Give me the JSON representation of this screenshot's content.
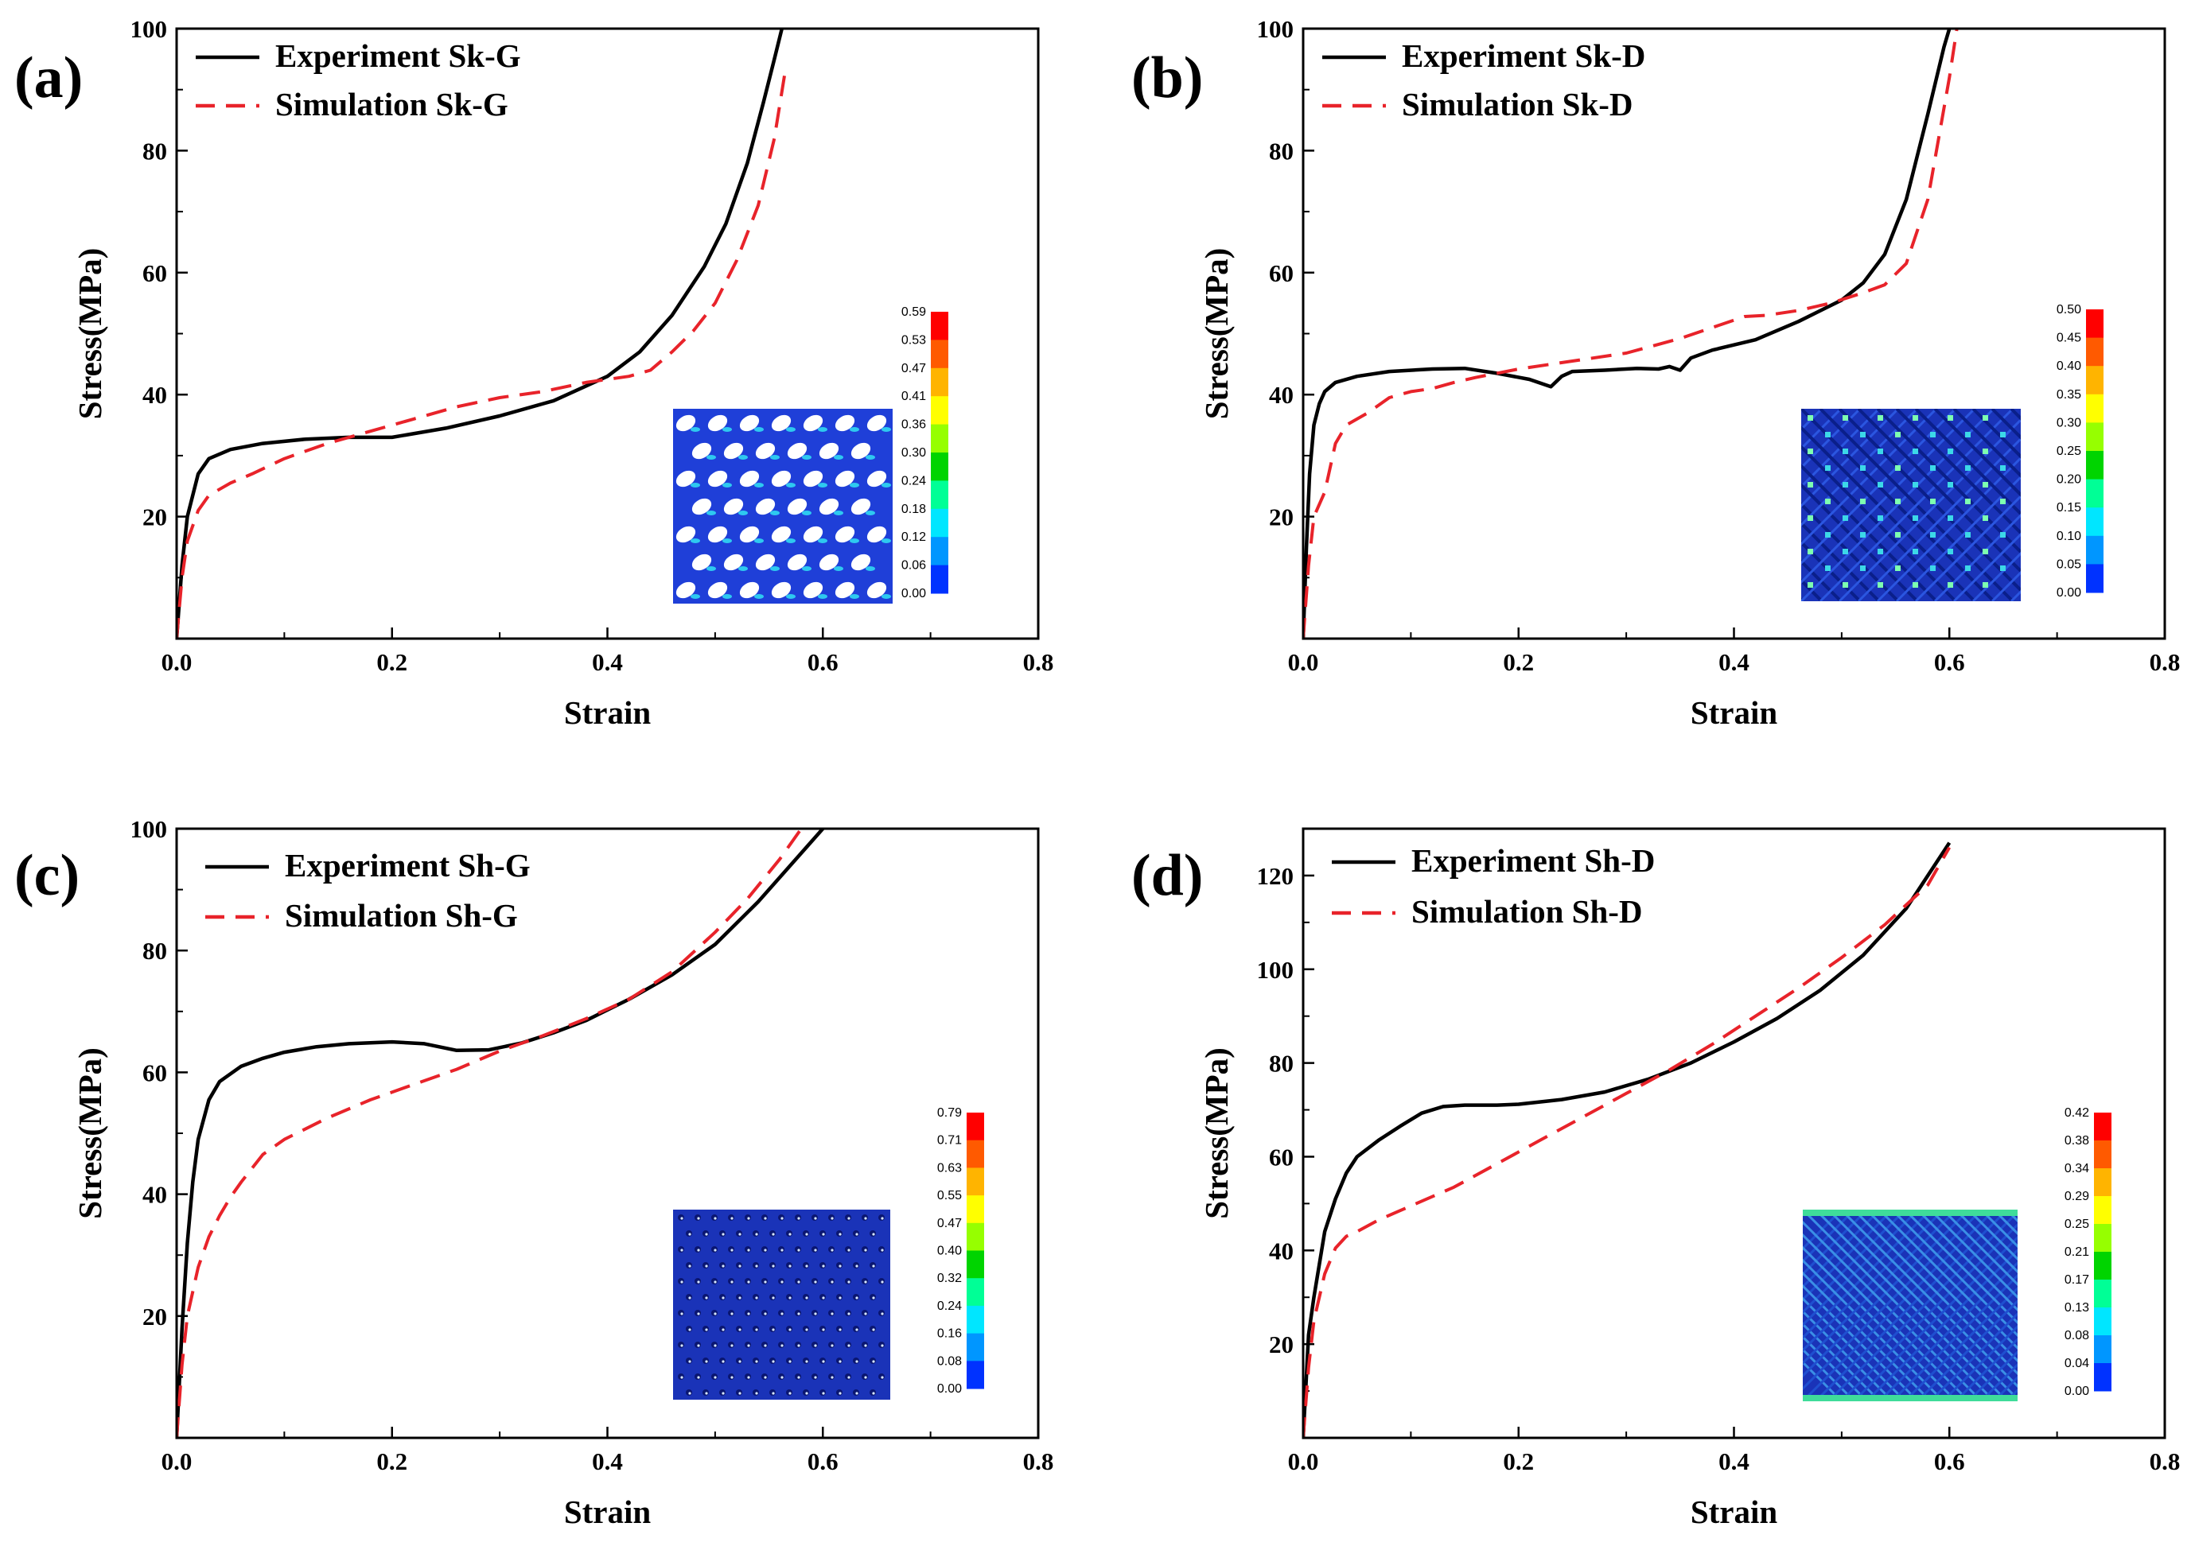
{
  "figure": {
    "colors": {
      "experiment": "#000000",
      "simulation": "#e8232a"
    }
  },
  "chart_data": [
    {
      "type": "line",
      "panel_label": "(a)",
      "xlabel": "Strain",
      "ylabel": "Stress(MPa)",
      "xlim": [
        0,
        0.8
      ],
      "ylim": [
        0,
        100
      ],
      "xticks": [
        "0.0",
        "0.2",
        "0.4",
        "0.6",
        "0.8"
      ],
      "yticks": [
        "20",
        "40",
        "60",
        "80",
        "100"
      ],
      "yticks_values": [
        20,
        40,
        60,
        80,
        100
      ],
      "legend_position": "top-left",
      "series": [
        {
          "name": "Experiment Sk-G",
          "style": "solid",
          "color": "#000000",
          "x": [
            0,
            0.005,
            0.01,
            0.02,
            0.03,
            0.05,
            0.08,
            0.12,
            0.16,
            0.2,
            0.25,
            0.3,
            0.35,
            0.4,
            0.43,
            0.46,
            0.49,
            0.51,
            0.53,
            0.545,
            0.555,
            0.562
          ],
          "y": [
            0,
            12,
            20,
            27,
            29.5,
            31,
            32,
            32.7,
            33,
            33,
            34.5,
            36.5,
            39,
            43,
            47,
            53,
            61,
            68,
            78,
            88,
            95,
            100
          ]
        },
        {
          "name": "Simulation Sk-G",
          "style": "dashed",
          "color": "#e8232a",
          "x": [
            0,
            0.005,
            0.01,
            0.02,
            0.03,
            0.05,
            0.07,
            0.1,
            0.14,
            0.18,
            0.22,
            0.26,
            0.3,
            0.34,
            0.38,
            0.42,
            0.44,
            0.46,
            0.48,
            0.5,
            0.52,
            0.54,
            0.555,
            0.565
          ],
          "y": [
            0,
            10,
            16,
            21,
            23.5,
            25.5,
            27,
            29.5,
            32,
            34,
            36,
            38,
            39.5,
            40.5,
            42,
            43,
            44,
            47,
            50.5,
            55,
            62,
            71,
            82,
            93
          ]
        }
      ],
      "colorbar": {
        "labels": [
          "0.59",
          "0.53",
          "0.47",
          "0.41",
          "0.36",
          "0.30",
          "0.24",
          "0.18",
          "0.12",
          "0.06",
          "0.00"
        ]
      },
      "inset_pattern": "holes"
    },
    {
      "type": "line",
      "panel_label": "(b)",
      "xlabel": "Strain",
      "ylabel": "Stress(MPa)",
      "xlim": [
        0,
        0.8
      ],
      "ylim": [
        0,
        100
      ],
      "xticks": [
        "0.0",
        "0.2",
        "0.4",
        "0.6",
        "0.8"
      ],
      "yticks": [
        "20",
        "40",
        "60",
        "80",
        "100"
      ],
      "yticks_values": [
        20,
        40,
        60,
        80,
        100
      ],
      "legend_position": "top-left",
      "series": [
        {
          "name": "Experiment Sk-D",
          "style": "solid",
          "color": "#000000",
          "x": [
            0,
            0.003,
            0.006,
            0.01,
            0.015,
            0.02,
            0.03,
            0.05,
            0.08,
            0.12,
            0.15,
            0.18,
            0.21,
            0.23,
            0.24,
            0.25,
            0.28,
            0.31,
            0.33,
            0.34,
            0.35,
            0.36,
            0.38,
            0.42,
            0.46,
            0.5,
            0.52,
            0.54,
            0.56,
            0.58,
            0.595,
            0.6
          ],
          "y": [
            0,
            15,
            27,
            35,
            38.5,
            40.5,
            42,
            43,
            43.8,
            44.2,
            44.3,
            43.5,
            42.5,
            41.3,
            43,
            43.8,
            44,
            44.3,
            44.2,
            44.6,
            44,
            46,
            47.3,
            49,
            52,
            55.5,
            58.3,
            63,
            72,
            86,
            97,
            100
          ]
        },
        {
          "name": "Simulation Sk-D",
          "style": "dashed",
          "color": "#e8232a",
          "x": [
            0,
            0.005,
            0.01,
            0.02,
            0.03,
            0.04,
            0.06,
            0.08,
            0.1,
            0.12,
            0.14,
            0.16,
            0.2,
            0.25,
            0.3,
            0.35,
            0.38,
            0.41,
            0.43,
            0.46,
            0.49,
            0.52,
            0.54,
            0.56,
            0.58,
            0.6,
            0.607
          ],
          "y": [
            0,
            12,
            20,
            24,
            32,
            35,
            37,
            39.5,
            40.5,
            41,
            42,
            42.8,
            44.2,
            45.5,
            46.8,
            49.2,
            51,
            52.8,
            53,
            53.8,
            55,
            56.7,
            58,
            61.5,
            72,
            92,
            100
          ]
        }
      ],
      "colorbar": {
        "labels": [
          "0.50",
          "0.45",
          "0.40",
          "0.35",
          "0.30",
          "0.25",
          "0.20",
          "0.15",
          "0.10",
          "0.05",
          "0.00"
        ]
      },
      "inset_pattern": "diagonal"
    },
    {
      "type": "line",
      "panel_label": "(c)",
      "xlabel": "Strain",
      "ylabel": "Stress(MPa)",
      "xlim": [
        0,
        0.8
      ],
      "ylim": [
        0,
        100
      ],
      "xticks": [
        "0.0",
        "0.2",
        "0.4",
        "0.6",
        "0.8"
      ],
      "yticks": [
        "20",
        "40",
        "60",
        "80",
        "100"
      ],
      "yticks_values": [
        20,
        40,
        60,
        80,
        100
      ],
      "legend_position": "top-left",
      "series": [
        {
          "name": "Experiment Sh-G",
          "style": "solid",
          "color": "#000000",
          "x": [
            0,
            0.005,
            0.01,
            0.015,
            0.02,
            0.03,
            0.04,
            0.06,
            0.08,
            0.1,
            0.13,
            0.16,
            0.2,
            0.23,
            0.26,
            0.29,
            0.32,
            0.35,
            0.38,
            0.42,
            0.46,
            0.5,
            0.54,
            0.57,
            0.6
          ],
          "y": [
            0,
            18,
            32,
            42,
            49,
            55.5,
            58.5,
            61,
            62.3,
            63.3,
            64.2,
            64.7,
            65,
            64.7,
            63.6,
            63.7,
            64.8,
            66.5,
            68.5,
            72,
            76,
            81,
            88,
            94,
            100
          ]
        },
        {
          "name": "Simulation Sh-G",
          "style": "dashed",
          "color": "#e8232a",
          "x": [
            0,
            0.005,
            0.01,
            0.02,
            0.03,
            0.04,
            0.05,
            0.06,
            0.08,
            0.1,
            0.14,
            0.18,
            0.22,
            0.26,
            0.3,
            0.34,
            0.38,
            0.42,
            0.46,
            0.5,
            0.53,
            0.56,
            0.58
          ],
          "y": [
            0,
            12,
            20,
            28,
            33,
            36.5,
            39.5,
            42,
            46.5,
            49,
            52.5,
            55.5,
            58,
            60.5,
            63.5,
            66,
            68.8,
            72,
            76.5,
            83,
            88.5,
            95,
            100
          ]
        }
      ],
      "colorbar": {
        "labels": [
          "0.79",
          "0.71",
          "0.63",
          "0.55",
          "0.47",
          "0.40",
          "0.32",
          "0.24",
          "0.16",
          "0.08",
          "0.00"
        ]
      },
      "inset_pattern": "dots"
    },
    {
      "type": "line",
      "panel_label": "(d)",
      "xlabel": "Strain",
      "ylabel": "Stress(MPa)",
      "xlim": [
        0,
        0.8
      ],
      "ylim": [
        0,
        130
      ],
      "xticks": [
        "0.0",
        "0.2",
        "0.4",
        "0.6",
        "0.8"
      ],
      "yticks": [
        "20",
        "40",
        "60",
        "80",
        "100",
        "120"
      ],
      "yticks_values": [
        20,
        40,
        60,
        80,
        100,
        120
      ],
      "legend_position": "top-left",
      "series": [
        {
          "name": "Experiment Sh-D",
          "style": "solid",
          "color": "#000000",
          "x": [
            0,
            0.005,
            0.01,
            0.015,
            0.02,
            0.03,
            0.04,
            0.05,
            0.07,
            0.09,
            0.11,
            0.13,
            0.15,
            0.18,
            0.2,
            0.24,
            0.28,
            0.32,
            0.36,
            0.4,
            0.44,
            0.48,
            0.52,
            0.56,
            0.6
          ],
          "y": [
            0,
            22,
            30,
            37,
            44,
            51,
            56.5,
            60,
            63.5,
            66.5,
            69.3,
            70.7,
            71,
            71,
            71.2,
            72.2,
            73.8,
            76.5,
            80,
            84.5,
            89.5,
            95.5,
            103,
            113,
            127
          ]
        },
        {
          "name": "Simulation Sh-D",
          "style": "dashed",
          "color": "#e8232a",
          "x": [
            0,
            0.005,
            0.01,
            0.02,
            0.03,
            0.04,
            0.05,
            0.07,
            0.1,
            0.14,
            0.18,
            0.22,
            0.26,
            0.3,
            0.34,
            0.38,
            0.42,
            0.46,
            0.5,
            0.54,
            0.58,
            0.6
          ],
          "y": [
            0,
            15,
            25,
            35,
            40.5,
            43,
            44,
            46.5,
            49.5,
            53.5,
            58.5,
            63.5,
            68.5,
            73.5,
            78.5,
            84,
            90,
            96,
            102.5,
            109.5,
            118,
            126
          ]
        }
      ],
      "colorbar": {
        "labels": [
          "0.42",
          "0.38",
          "0.34",
          "0.29",
          "0.25",
          "0.21",
          "0.17",
          "0.13",
          "0.08",
          "0.04",
          "0.00"
        ]
      },
      "inset_pattern": "lattice"
    }
  ]
}
